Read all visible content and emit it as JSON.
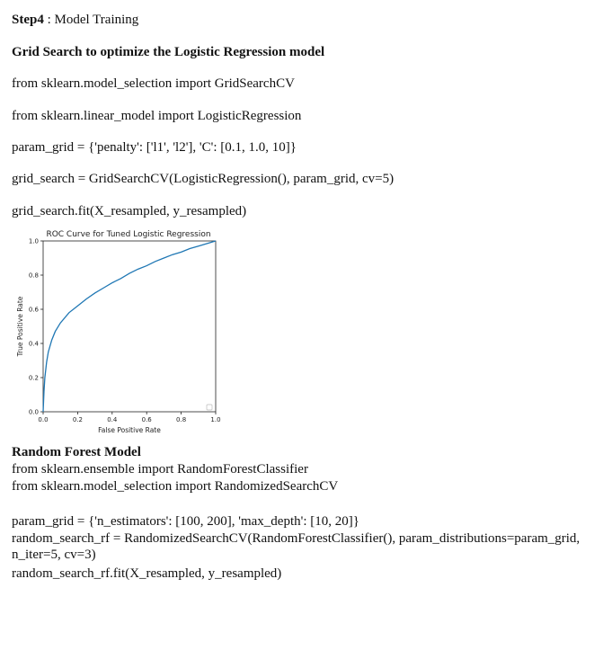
{
  "step": {
    "label": "Step4",
    "separator": " : ",
    "title": "Model Training"
  },
  "section1": {
    "heading": "Grid Search to optimize the Logistic Regression model",
    "code_lines": [
      "from sklearn.model_selection import GridSearchCV",
      "from sklearn.linear_model import LogisticRegression",
      "param_grid = {'penalty': ['l1', 'l2'], 'C': [0.1, 1.0, 10]}",
      "grid_search = GridSearchCV(LogisticRegression(), param_grid, cv=5)",
      "grid_search.fit(X_resampled, y_resampled)"
    ]
  },
  "chart_data": {
    "type": "line",
    "title": "ROC Curve for Tuned Logistic Regression",
    "xlabel": "False Positive Rate",
    "ylabel": "True Positive Rate",
    "xlim": [
      0,
      1
    ],
    "ylim": [
      0,
      1
    ],
    "xticks": [
      "0.0",
      "0.2",
      "0.4",
      "0.6",
      "0.8",
      "1.0"
    ],
    "yticks": [
      "0.0",
      "0.2",
      "0.4",
      "0.6",
      "0.8",
      "1.0"
    ],
    "grid": false,
    "legend": "bottom-right",
    "series": [
      {
        "color": "#1f77b4",
        "x": [
          0.0,
          0.005,
          0.01,
          0.02,
          0.03,
          0.05,
          0.07,
          0.1,
          0.15,
          0.2,
          0.25,
          0.3,
          0.35,
          0.4,
          0.45,
          0.5,
          0.55,
          0.6,
          0.65,
          0.7,
          0.75,
          0.8,
          0.85,
          0.9,
          0.95,
          1.0
        ],
        "y": [
          0.0,
          0.12,
          0.2,
          0.29,
          0.35,
          0.42,
          0.47,
          0.52,
          0.58,
          0.62,
          0.66,
          0.695,
          0.725,
          0.755,
          0.78,
          0.81,
          0.835,
          0.855,
          0.88,
          0.9,
          0.92,
          0.935,
          0.955,
          0.97,
          0.985,
          1.0
        ]
      }
    ]
  },
  "section2": {
    "heading": "Random Forest Model",
    "lines": [
      "from sklearn.ensemble import RandomForestClassifier",
      "from sklearn.model_selection import RandomizedSearchCV",
      "param_grid = {'n_estimators': [100, 200], 'max_depth': [10, 20]}",
      "random_search_rf = RandomizedSearchCV(RandomForestClassifier(), param_distributions=param_grid, n_iter=5, cv=3)",
      "random_search_rf.fit(X_resampled, y_resampled)"
    ]
  }
}
